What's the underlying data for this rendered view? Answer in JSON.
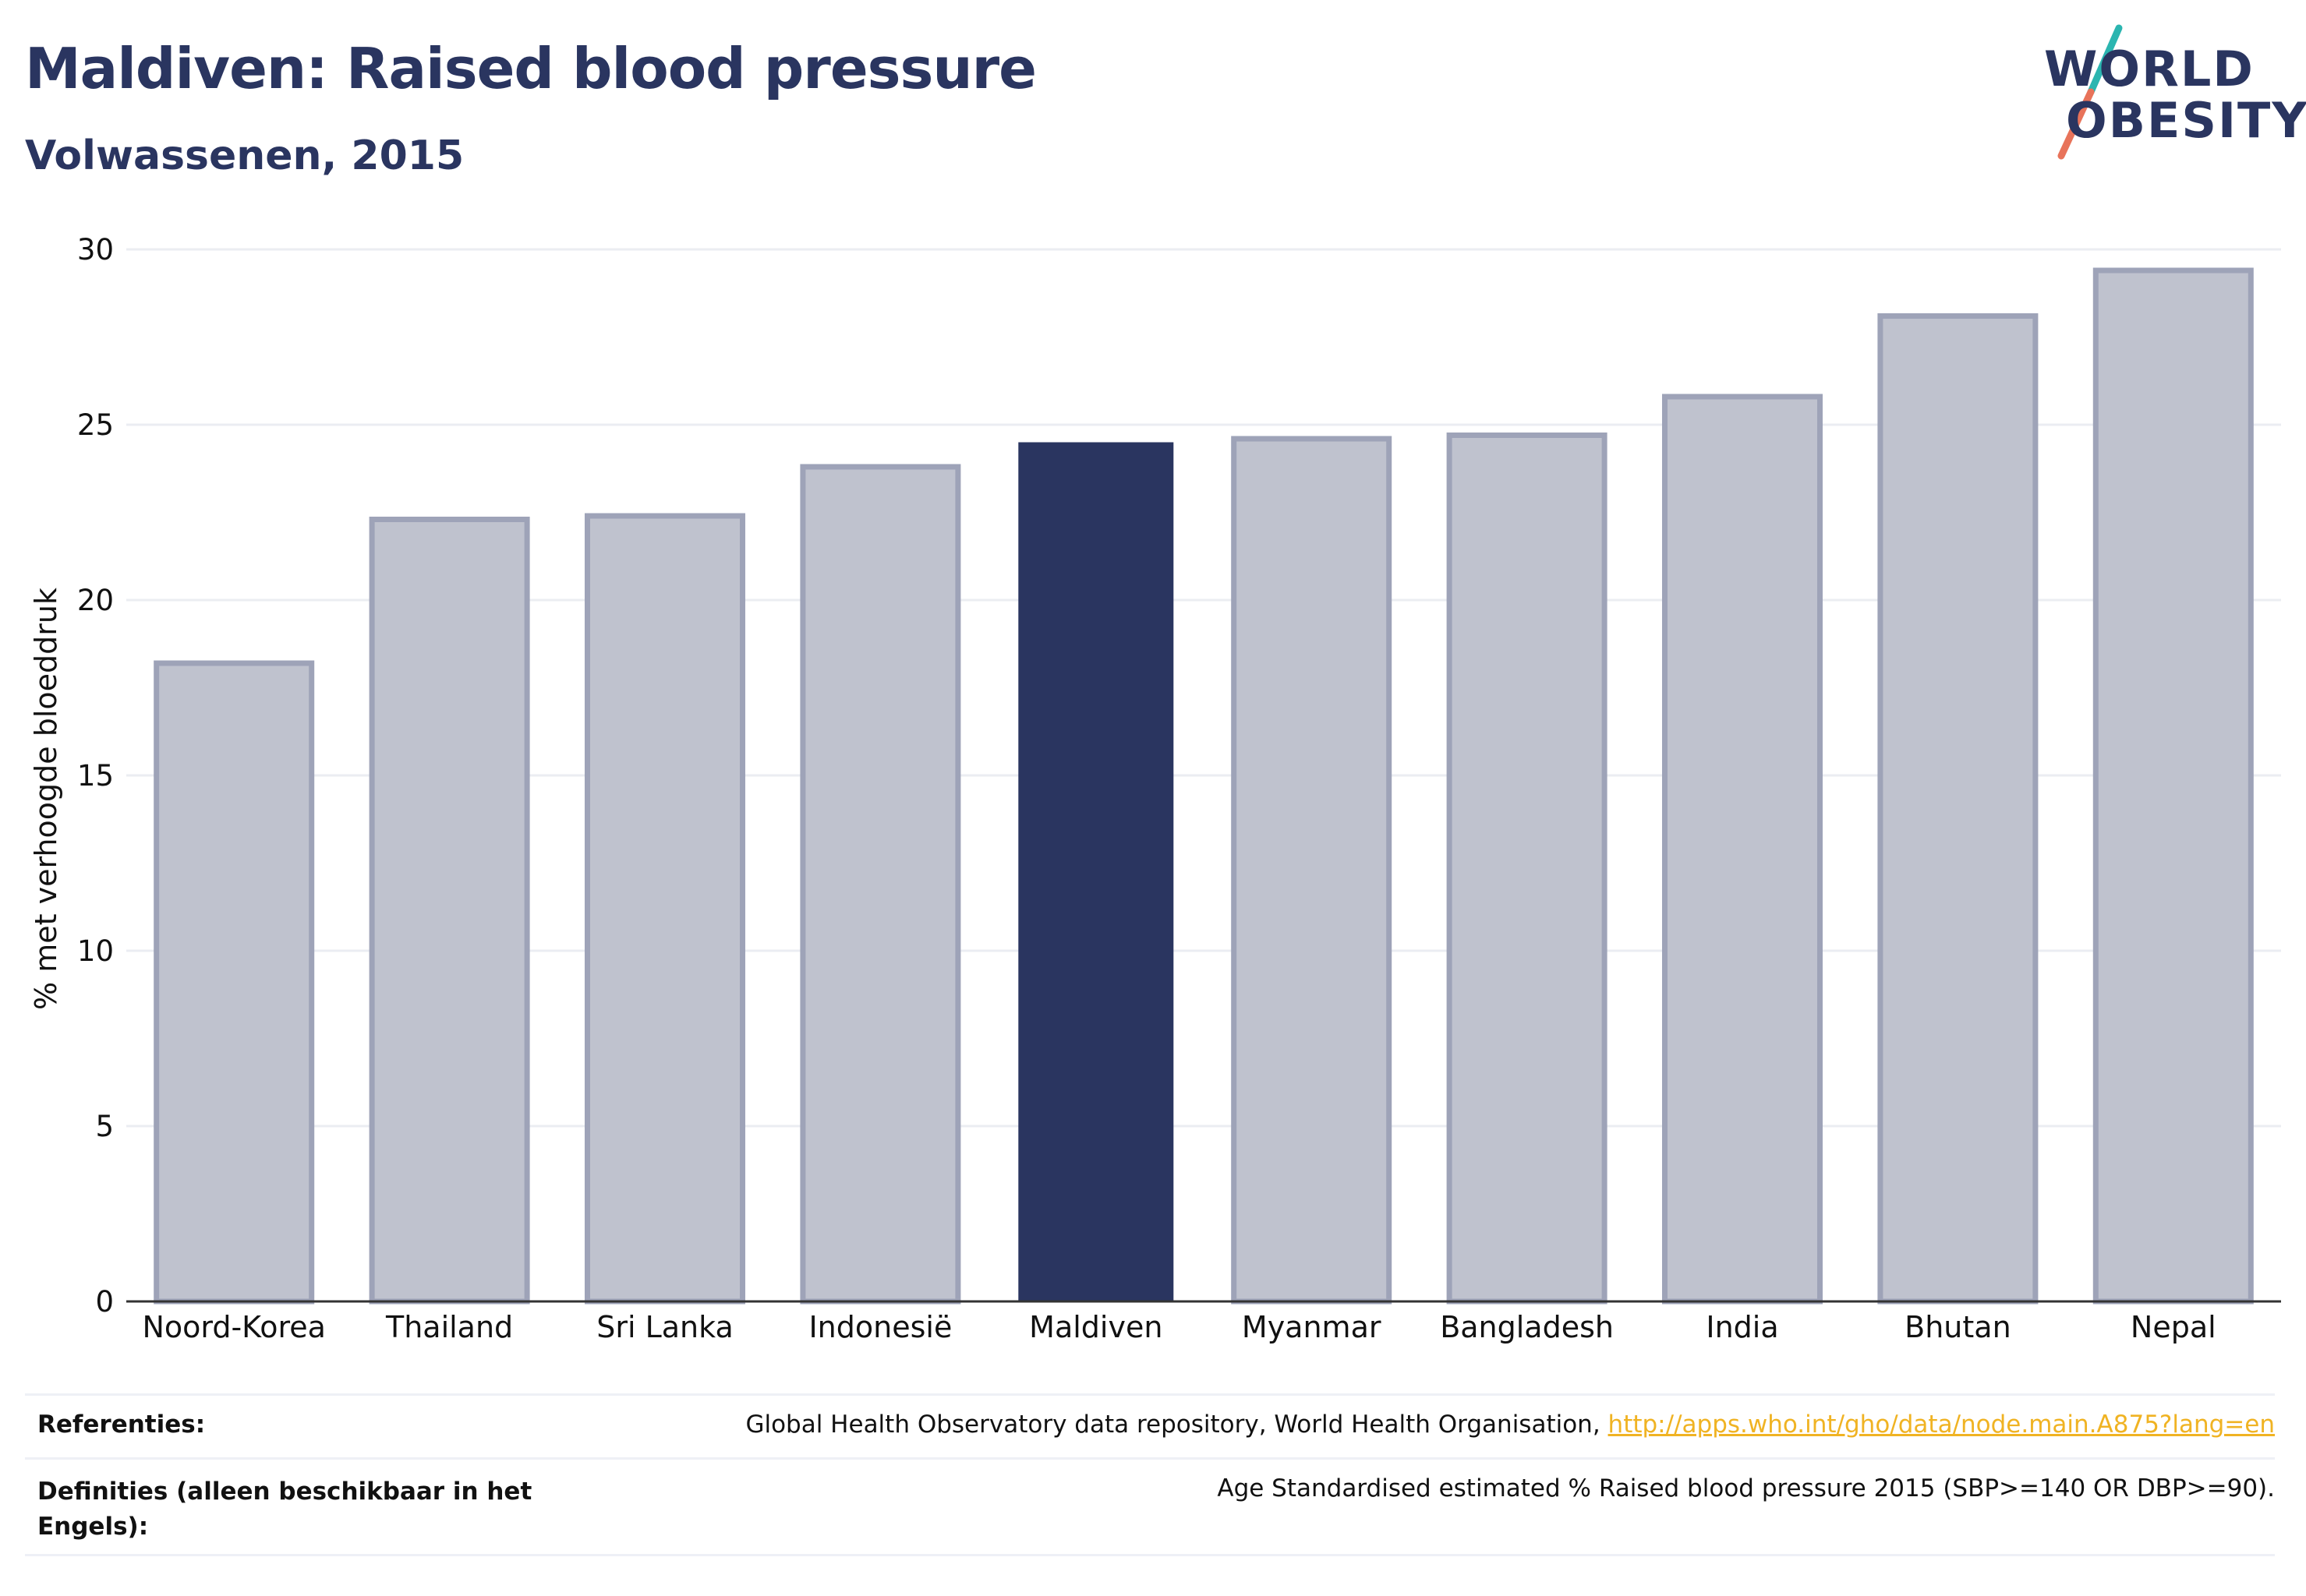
{
  "header": {
    "title": "Maldiven: Raised blood pressure",
    "subtitle": "Volwassenen, 2015"
  },
  "logo": {
    "line1": "WORLD",
    "line2": "OBESITY",
    "colors": {
      "text": "#2a3560",
      "slash_top": "#2bb5b0",
      "slash_bottom": "#e8735a"
    }
  },
  "chart_data": {
    "type": "bar",
    "title": "Maldiven: Raised blood pressure",
    "subtitle": "Volwassenen, 2015",
    "xlabel": "",
    "ylabel": "% met verhoogde bloeddruk",
    "ylim": [
      0,
      30
    ],
    "yticks": [
      0,
      5,
      10,
      15,
      20,
      25,
      30
    ],
    "categories": [
      "Noord-Korea",
      "Thailand",
      "Sri Lanka",
      "Indonesië",
      "Maldiven",
      "Myanmar",
      "Bangladesh",
      "India",
      "Bhutan",
      "Nepal"
    ],
    "values": [
      18.2,
      22.3,
      22.4,
      23.8,
      24.5,
      24.6,
      24.7,
      25.8,
      28.1,
      29.4
    ],
    "highlight": "Maldiven",
    "grid": true,
    "colors": {
      "bar_fill": "#bfc2ce",
      "bar_border": "#9ea3b8",
      "highlight_fill": "#2a3560",
      "grid": "#ebedf2",
      "axis": "#333333"
    }
  },
  "footer": {
    "references_label": "Referenties:",
    "references_text": "Global Health Observatory data repository, World Health Organisation, ",
    "references_link": "http://apps.who.int/gho/data/node.main.A875?lang=en",
    "definitions_label": "Definities (alleen beschikbaar in het Engels):",
    "definitions_text": "Age Standardised estimated % Raised blood pressure 2015 (SBP>=140 OR DBP>=90)."
  }
}
